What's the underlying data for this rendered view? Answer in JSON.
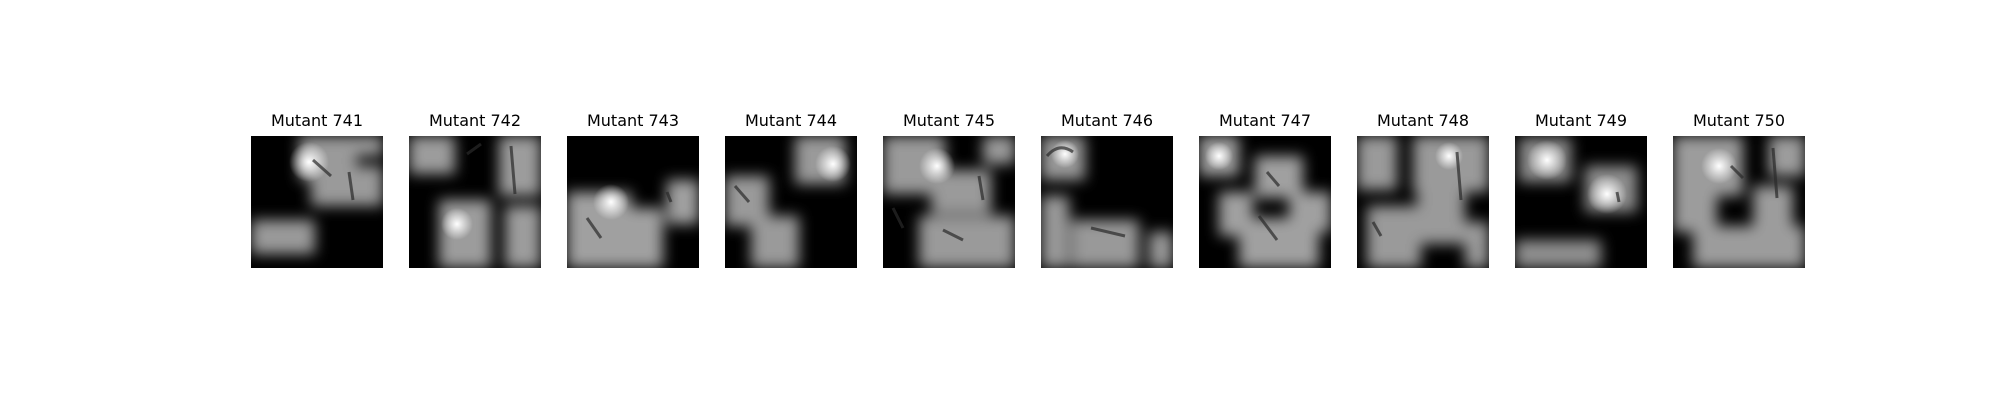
{
  "panels": [
    {
      "title": "Mutant 741",
      "image": "mutant-741-saliency"
    },
    {
      "title": "Mutant 742",
      "image": "mutant-742-saliency"
    },
    {
      "title": "Mutant 743",
      "image": "mutant-743-saliency"
    },
    {
      "title": "Mutant 744",
      "image": "mutant-744-saliency"
    },
    {
      "title": "Mutant 745",
      "image": "mutant-745-saliency"
    },
    {
      "title": "Mutant 746",
      "image": "mutant-746-saliency"
    },
    {
      "title": "Mutant 747",
      "image": "mutant-747-saliency"
    },
    {
      "title": "Mutant 748",
      "image": "mutant-748-saliency"
    },
    {
      "title": "Mutant 749",
      "image": "mutant-749-saliency"
    },
    {
      "title": "Mutant 750",
      "image": "mutant-750-saliency"
    }
  ]
}
